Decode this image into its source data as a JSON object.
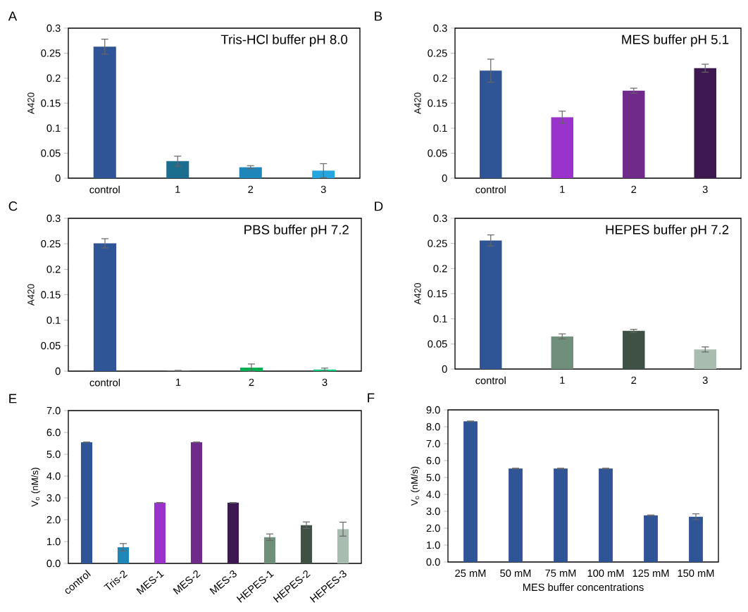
{
  "chart_data": [
    {
      "type": "bar",
      "title": "Tris-HCl buffer pH 8.0",
      "annotations": [
        "A"
      ],
      "ylabel": "A420",
      "categories": [
        "control",
        "1",
        "2",
        "3"
      ],
      "values": [
        0.263,
        0.034,
        0.022,
        0.015
      ],
      "errors": [
        0.015,
        0.01,
        0.003,
        0.014
      ],
      "colors": [
        "#2f5597",
        "#1c6e8f",
        "#1f86ba",
        "#26a6df"
      ],
      "ylim": [
        0,
        0.3
      ],
      "yticks": [
        0,
        0.05,
        0.1,
        0.15,
        0.2,
        0.25,
        0.3
      ]
    },
    {
      "type": "bar",
      "title": "MES buffer pH 5.1",
      "annotations": [
        "B"
      ],
      "ylabel": "A420",
      "categories": [
        "control",
        "1",
        "2",
        "3"
      ],
      "values": [
        0.215,
        0.122,
        0.175,
        0.22
      ],
      "errors": [
        0.023,
        0.012,
        0.005,
        0.008
      ],
      "colors": [
        "#2f5597",
        "#9933cc",
        "#6f2a8a",
        "#3e1850"
      ],
      "ylim": [
        0,
        0.3
      ],
      "yticks": [
        0,
        0.05,
        0.1,
        0.15,
        0.2,
        0.25,
        0.3
      ]
    },
    {
      "type": "bar",
      "title": "PBS buffer pH 7.2",
      "annotations": [
        "C"
      ],
      "ylabel": "A420",
      "categories": [
        "control",
        "1",
        "2",
        "3"
      ],
      "values": [
        0.251,
        0.001,
        0.007,
        0.003
      ],
      "errors": [
        0.009,
        0.0005,
        0.007,
        0.003
      ],
      "colors": [
        "#2f5597",
        "#666666",
        "#00b050",
        "#00c878"
      ],
      "ylim": [
        0,
        0.3
      ],
      "yticks": [
        0,
        0.05,
        0.1,
        0.15,
        0.2,
        0.25,
        0.3
      ]
    },
    {
      "type": "bar",
      "title": "HEPES buffer pH 7.2",
      "annotations": [
        "D"
      ],
      "ylabel": "A420",
      "categories": [
        "control",
        "1",
        "2",
        "3"
      ],
      "values": [
        0.256,
        0.065,
        0.076,
        0.039
      ],
      "errors": [
        0.011,
        0.005,
        0.003,
        0.005
      ],
      "colors": [
        "#2f5597",
        "#6f8f7a",
        "#3f5044",
        "#a8bcaf"
      ],
      "ylim": [
        0,
        0.3
      ],
      "yticks": [
        0,
        0.05,
        0.1,
        0.15,
        0.2,
        0.25,
        0.3
      ]
    },
    {
      "type": "bar",
      "annotations": [
        "E"
      ],
      "ylabel": "V$_{o}$ (nM/s)",
      "categories": [
        "control",
        "Tris-2",
        "MES-1",
        "MES-2",
        "MES-3",
        "HEPES-1",
        "HEPES-2",
        "HEPES-3"
      ],
      "values": [
        5.55,
        0.74,
        2.78,
        5.55,
        2.78,
        1.2,
        1.75,
        1.57
      ],
      "errors": [
        0.01,
        0.17,
        0.01,
        0.01,
        0.01,
        0.15,
        0.15,
        0.32
      ],
      "colors": [
        "#2f5597",
        "#1f86ba",
        "#9933cc",
        "#6f2a8a",
        "#3e1850",
        "#6f8f7a",
        "#3f5044",
        "#a8bcaf"
      ],
      "ylim": [
        0,
        7
      ],
      "yticks": [
        {
          "value": 0,
          "label": "0.0"
        },
        {
          "value": 1,
          "label": "1.0"
        },
        {
          "value": 2,
          "label": "2.0"
        },
        {
          "value": 3,
          "label": "3.0"
        },
        {
          "value": 4,
          "label": "4.0"
        },
        {
          "value": 5,
          "label": "5.0"
        },
        {
          "value": 6,
          "label": "6.0"
        },
        {
          "value": 7,
          "label": "7.0"
        }
      ]
    },
    {
      "type": "bar",
      "annotations": [
        "F"
      ],
      "ylabel": "V$_{o}$ (nM/s)",
      "xlabel": "MES buffer concentrations",
      "categories": [
        "25 mM",
        "50 mM",
        "75 mM",
        "100 mM",
        "125 mM",
        "150 mM"
      ],
      "values": [
        8.32,
        5.53,
        5.53,
        5.53,
        2.76,
        2.68
      ],
      "errors": [
        0.02,
        0.02,
        0.02,
        0.02,
        0.02,
        0.17
      ],
      "colors": [
        "#2f5597",
        "#2f5597",
        "#2f5597",
        "#2f5597",
        "#2f5597",
        "#2f5597"
      ],
      "ylim": [
        0,
        9
      ],
      "yticks": [
        {
          "value": 0,
          "label": "0.0"
        },
        {
          "value": 1,
          "label": "1.0"
        },
        {
          "value": 2,
          "label": "2.0"
        },
        {
          "value": 3,
          "label": "3.0"
        },
        {
          "value": 4,
          "label": "4.0"
        },
        {
          "value": 5,
          "label": "5.0"
        },
        {
          "value": 6,
          "label": "6.0"
        },
        {
          "value": 7,
          "label": "7.0"
        },
        {
          "value": 8,
          "label": "8.0"
        },
        {
          "value": 9,
          "label": "9.0"
        }
      ]
    }
  ]
}
